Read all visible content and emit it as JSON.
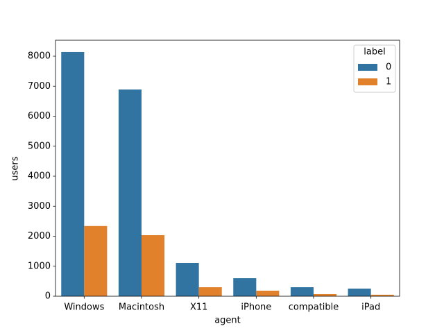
{
  "chart_data": {
    "type": "bar",
    "x_label": "agent",
    "y_label": "users",
    "categories": [
      "Windows",
      "Macintosh",
      "X11",
      "iPhone",
      "compatible",
      "iPad"
    ],
    "series": [
      {
        "name": "0",
        "color": "#3274a1",
        "values": [
          8140,
          6890,
          1110,
          600,
          300,
          255
        ]
      },
      {
        "name": "1",
        "color": "#e1812c",
        "values": [
          2340,
          2035,
          300,
          185,
          70,
          50
        ]
      }
    ],
    "ylim": [
      0,
      8532
    ],
    "yticks": [
      0,
      1000,
      2000,
      3000,
      4000,
      5000,
      6000,
      7000,
      8000
    ],
    "legend_title": "label",
    "legend_loc": "upper right",
    "grid": false
  }
}
